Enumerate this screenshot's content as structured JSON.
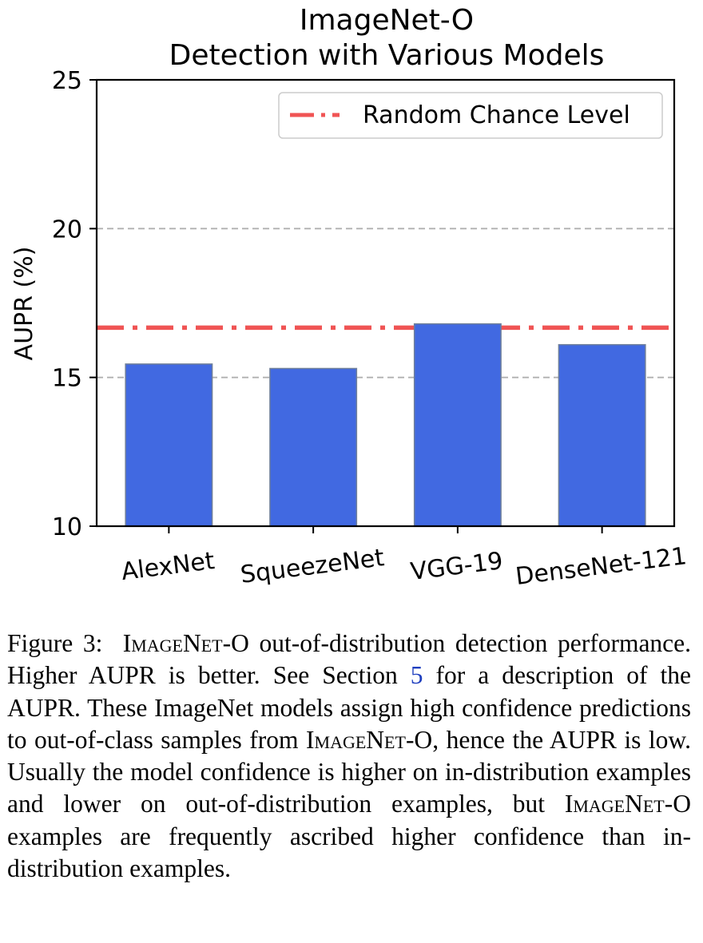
{
  "chart_data": {
    "type": "bar",
    "title_line1": "ImageNet-O",
    "title_line2": "Detection with Various Models",
    "xlabel": "",
    "ylabel": "AUPR (%)",
    "ylim": [
      10,
      25
    ],
    "yticks": [
      "10",
      "15",
      "20",
      "25"
    ],
    "categories": [
      "AlexNet",
      "SqueezeNet",
      "VGG-19",
      "DenseNet-121"
    ],
    "values": [
      15.45,
      15.3,
      16.8,
      16.1
    ],
    "bar_color": "#4169e1",
    "reference_line": {
      "label": "Random Chance Level",
      "value": 16.67,
      "color": "#f05454",
      "style": "dash-dot"
    },
    "grid": "horizontal dashed",
    "legend_position": "top-right"
  },
  "caption": {
    "label": "Figure 3:",
    "name_a": "ImageNet",
    "name_b": "-O",
    "part1": "out-of-distribution detection performance. Higher AUPR is better. See Section",
    "ref": "5",
    "part2": "for a description of the AUPR. These ImageNet models assign high confidence predictions to out-of-class samples from",
    "part3": ", hence the AUPR is low. Usually the model confidence is higher on in-distribution examples and lower on out-of-distribution examples, but",
    "part4": "examples are frequently ascribed higher confidence than in-distribution examples."
  }
}
